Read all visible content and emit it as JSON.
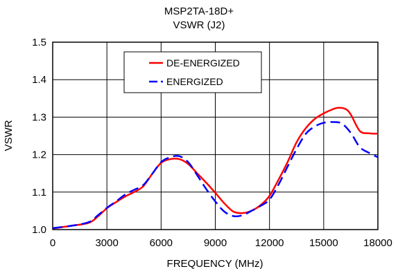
{
  "chart_data": {
    "type": "line",
    "title": "MSP2TA-18D+",
    "subtitle": "VSWR (J2)",
    "xlabel": "FREQUENCY (MHz)",
    "ylabel": "VSWR",
    "xlim": [
      0,
      18000
    ],
    "ylim": [
      1.0,
      1.5
    ],
    "x_ticks": [
      0,
      3000,
      6000,
      9000,
      12000,
      15000,
      18000
    ],
    "x_tick_labels": [
      "0",
      "3000",
      "6000",
      "9000",
      "12000",
      "15000",
      "18000"
    ],
    "y_ticks": [
      1.0,
      1.1,
      1.2,
      1.3,
      1.4,
      1.5
    ],
    "y_tick_labels": [
      "1.0",
      "1.1",
      "1.2",
      "1.3",
      "1.4",
      "1.5"
    ],
    "grid": true,
    "legend_position": "top-center",
    "series": [
      {
        "name": "DE-ENERGIZED",
        "color": "#ff0000",
        "style": "solid",
        "x": [
          0,
          1000,
          2000,
          2500,
          3000,
          3500,
          4000,
          4500,
          5000,
          5500,
          6000,
          6500,
          7000,
          7500,
          8000,
          8500,
          9000,
          9500,
          10000,
          10500,
          11000,
          11500,
          12000,
          12500,
          13000,
          13500,
          14000,
          14500,
          15000,
          15500,
          15800,
          16200,
          16500,
          17000,
          17500,
          18000
        ],
        "y": [
          1.003,
          1.01,
          1.018,
          1.035,
          1.057,
          1.073,
          1.088,
          1.1,
          1.115,
          1.148,
          1.178,
          1.188,
          1.188,
          1.175,
          1.15,
          1.125,
          1.098,
          1.07,
          1.048,
          1.044,
          1.05,
          1.065,
          1.09,
          1.133,
          1.18,
          1.233,
          1.27,
          1.295,
          1.31,
          1.321,
          1.325,
          1.322,
          1.307,
          1.263,
          1.257,
          1.256
        ]
      },
      {
        "name": "ENERGIZED",
        "color": "#0000ff",
        "style": "dashed",
        "x": [
          0,
          1000,
          2000,
          2500,
          3000,
          3500,
          4000,
          4500,
          5000,
          5500,
          6000,
          6500,
          7000,
          7500,
          8000,
          8500,
          9000,
          9500,
          10000,
          10500,
          11000,
          11500,
          12000,
          12500,
          13000,
          13500,
          14000,
          14500,
          15000,
          15500,
          16000,
          16500,
          17000,
          17500,
          18000
        ],
        "y": [
          1.004,
          1.01,
          1.02,
          1.038,
          1.058,
          1.075,
          1.093,
          1.106,
          1.118,
          1.148,
          1.18,
          1.193,
          1.196,
          1.18,
          1.145,
          1.108,
          1.075,
          1.048,
          1.036,
          1.038,
          1.05,
          1.063,
          1.08,
          1.12,
          1.168,
          1.215,
          1.255,
          1.275,
          1.285,
          1.287,
          1.283,
          1.258,
          1.22,
          1.205,
          1.193
        ]
      }
    ]
  }
}
